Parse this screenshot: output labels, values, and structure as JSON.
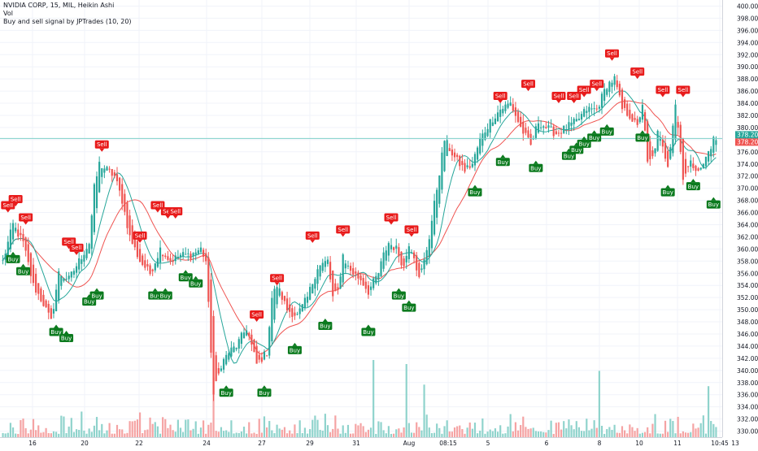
{
  "legend": {
    "title": "NVIDIA CORP, 15, MIL, Heikin Ashi",
    "vol": "Vol",
    "indicator": "Buy and sell signal by JPTrades (10, 20)"
  },
  "colors": {
    "up": "#26a69a",
    "down": "#ef5350",
    "vol_up": "#8fd3cc",
    "vol_down": "#f5a3a3",
    "ma_fast": "#26a69a",
    "ma_slow": "#ef5350",
    "buy": "#0b7a1e",
    "sell": "#e81b1b",
    "last_price_line": "#7fd1c9",
    "last_price_bg": "#26a69a",
    "last_price_bg2": "#ef5350",
    "grid": "#f0f3fa",
    "axis_text": "#131722"
  },
  "chart_data": {
    "type": "candlestick",
    "title": "NVIDIA CORP, 15, MIL, Heikin Ashi",
    "y_axis": {
      "ylim": [
        329,
        401
      ],
      "ticks": [
        330,
        332,
        334,
        336,
        338,
        340,
        342,
        344,
        346,
        348,
        350,
        352,
        354,
        356,
        358,
        360,
        362,
        364,
        366,
        368,
        370,
        372,
        374,
        376,
        378,
        380,
        382,
        384,
        386,
        388,
        390,
        392,
        394,
        396,
        398,
        400
      ]
    },
    "x_axis": {
      "tick_labels": [
        "16",
        "20",
        "22",
        "24",
        "27",
        "29",
        "31",
        "Aug",
        "08:15",
        "5",
        "6",
        "8",
        "10",
        "11",
        "10:45",
        "13"
      ]
    },
    "last_price": {
      "label1": "378.20",
      "label2": "378.20",
      "value": 378.2
    },
    "anchors": [
      [
        0,
        358
      ],
      [
        4,
        364
      ],
      [
        8,
        361
      ],
      [
        12,
        354
      ],
      [
        16,
        351
      ],
      [
        19,
        348
      ],
      [
        22,
        356
      ],
      [
        26,
        355
      ],
      [
        30,
        358
      ],
      [
        34,
        361
      ],
      [
        36,
        370
      ],
      [
        38,
        374
      ],
      [
        41,
        373
      ],
      [
        44,
        372
      ],
      [
        47,
        368
      ],
      [
        50,
        362
      ],
      [
        54,
        358
      ],
      [
        58,
        356
      ],
      [
        62,
        360
      ],
      [
        66,
        358
      ],
      [
        70,
        359
      ],
      [
        74,
        359
      ],
      [
        78,
        360
      ],
      [
        80,
        358
      ],
      [
        83,
        336
      ],
      [
        86,
        341
      ],
      [
        89,
        343
      ],
      [
        92,
        344
      ],
      [
        96,
        347
      ],
      [
        100,
        341
      ],
      [
        104,
        343
      ],
      [
        106,
        352
      ],
      [
        108,
        354
      ],
      [
        112,
        350
      ],
      [
        116,
        349
      ],
      [
        120,
        352
      ],
      [
        124,
        357
      ],
      [
        128,
        358
      ],
      [
        130,
        352
      ],
      [
        132,
        353
      ],
      [
        134,
        359
      ],
      [
        136,
        357
      ],
      [
        138,
        356
      ],
      [
        141,
        355
      ],
      [
        144,
        353
      ],
      [
        148,
        356
      ],
      [
        150,
        359
      ],
      [
        152,
        361
      ],
      [
        155,
        360
      ],
      [
        158,
        357
      ],
      [
        160,
        361
      ],
      [
        162,
        359
      ],
      [
        164,
        355
      ],
      [
        166,
        358
      ],
      [
        168,
        362
      ],
      [
        171,
        370
      ],
      [
        174,
        378
      ],
      [
        178,
        375
      ],
      [
        182,
        373
      ],
      [
        185,
        374
      ],
      [
        188,
        378
      ],
      [
        192,
        381
      ],
      [
        196,
        383
      ],
      [
        200,
        384
      ],
      [
        204,
        380
      ],
      [
        208,
        377
      ],
      [
        211,
        381
      ],
      [
        214,
        380
      ],
      [
        218,
        379
      ],
      [
        222,
        380
      ],
      [
        226,
        381
      ],
      [
        230,
        383
      ],
      [
        234,
        383
      ],
      [
        238,
        387
      ],
      [
        241,
        388
      ],
      [
        244,
        383
      ],
      [
        247,
        382
      ],
      [
        250,
        380
      ],
      [
        252,
        384
      ],
      [
        254,
        374
      ],
      [
        256,
        375
      ],
      [
        258,
        379
      ],
      [
        262,
        374
      ],
      [
        265,
        384
      ],
      [
        268,
        372
      ],
      [
        271,
        374
      ],
      [
        275,
        373
      ],
      [
        278,
        376
      ],
      [
        280,
        378
      ]
    ],
    "candles": [],
    "volume": [],
    "signals": {
      "sell": [
        [
          2,
          366
        ],
        [
          5,
          367
        ],
        [
          9,
          364
        ],
        [
          26,
          360
        ],
        [
          29,
          359
        ],
        [
          39,
          376
        ],
        [
          54,
          361
        ],
        [
          61,
          366
        ],
        [
          65,
          365
        ],
        [
          68,
          365
        ],
        [
          100,
          348
        ],
        [
          108,
          354
        ],
        [
          122,
          361
        ],
        [
          134,
          362
        ],
        [
          153,
          364
        ],
        [
          161,
          362
        ],
        [
          196,
          384
        ],
        [
          207,
          386
        ],
        [
          219,
          384
        ],
        [
          225,
          384
        ],
        [
          229,
          385
        ],
        [
          234,
          386
        ],
        [
          240,
          391
        ],
        [
          250,
          388
        ],
        [
          260,
          385
        ],
        [
          268,
          385
        ]
      ],
      "buy": [
        [
          4,
          359
        ],
        [
          8,
          357
        ],
        [
          21,
          347
        ],
        [
          25,
          346
        ],
        [
          34,
          352
        ],
        [
          37,
          353
        ],
        [
          60,
          353
        ],
        [
          64,
          353
        ],
        [
          72,
          356
        ],
        [
          76,
          355
        ],
        [
          88,
          337
        ],
        [
          103,
          337
        ],
        [
          115,
          344
        ],
        [
          127,
          348
        ],
        [
          144,
          347
        ],
        [
          156,
          353
        ],
        [
          160,
          351
        ],
        [
          186,
          370
        ],
        [
          197,
          375
        ],
        [
          210,
          374
        ],
        [
          223,
          376
        ],
        [
          226,
          377
        ],
        [
          229,
          378
        ],
        [
          233,
          379
        ],
        [
          238,
          380
        ],
        [
          252,
          379
        ],
        [
          262,
          370
        ],
        [
          272,
          371
        ],
        [
          280,
          368
        ]
      ]
    }
  }
}
